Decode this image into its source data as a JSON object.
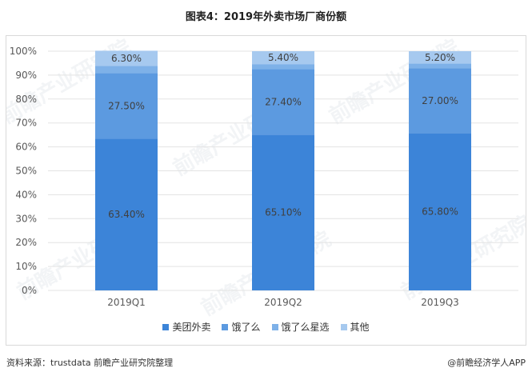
{
  "title": "图表4：2019年外卖市场厂商份额",
  "footer": {
    "source": "资料来源：trustdata 前瞻产业研究院整理",
    "brand": "@前瞻经济学人APP"
  },
  "watermark": "前瞻产业研究院",
  "colors": {
    "meituan": "#3c84d8",
    "eleme": "#5c9ae0",
    "xingxuan": "#7eb1e8",
    "other": "#a6c9ef"
  },
  "chart_data": {
    "type": "bar",
    "stacked": true,
    "percent": true,
    "categories": [
      "2019Q1",
      "2019Q2",
      "2019Q3"
    ],
    "series": [
      {
        "name": "美团外卖",
        "values": [
          63.4,
          65.1,
          65.8
        ],
        "labels": [
          "63.40%",
          "65.10%",
          "65.80%"
        ],
        "color": "#3c84d8"
      },
      {
        "name": "饿了么",
        "values": [
          27.5,
          27.4,
          27.0
        ],
        "labels": [
          "27.50%",
          "27.40%",
          "27.00%"
        ],
        "color": "#5c9ae0"
      },
      {
        "name": "饿了么星选",
        "values": [
          3.0,
          2.1,
          2.0
        ],
        "labels": [
          "",
          "",
          ""
        ],
        "color": "#7eb1e8"
      },
      {
        "name": "其他",
        "values": [
          6.3,
          5.4,
          5.2
        ],
        "labels": [
          "6.30%",
          "5.40%",
          "5.20%"
        ],
        "color": "#a6c9ef"
      }
    ],
    "ylim": [
      0,
      100
    ],
    "yticks": [
      "0%",
      "10%",
      "20%",
      "30%",
      "40%",
      "50%",
      "60%",
      "70%",
      "80%",
      "90%",
      "100%"
    ],
    "legend_position": "bottom",
    "grid": true
  }
}
